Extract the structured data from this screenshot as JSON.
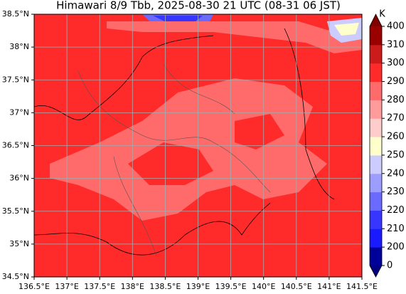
{
  "map": {
    "title": "Himawari 8/9 Tbb, 2025-08-30 21 UTC (08-31 06 JST)",
    "xlim": [
      136.5,
      141.5
    ],
    "ylim": [
      34.5,
      38.5
    ],
    "xticks": [
      {
        "value": 136.5,
        "label": "136.5°E"
      },
      {
        "value": 137,
        "label": "137°E"
      },
      {
        "value": 137.5,
        "label": "137.5°E"
      },
      {
        "value": 138,
        "label": "138°E"
      },
      {
        "value": 138.5,
        "label": "138.5°E"
      },
      {
        "value": 139,
        "label": "139°E"
      },
      {
        "value": 139.5,
        "label": "139.5°E"
      },
      {
        "value": 140,
        "label": "140°E"
      },
      {
        "value": 140.5,
        "label": "140.5°E"
      },
      {
        "value": 141,
        "label": "141°E"
      },
      {
        "value": 141.5,
        "label": "141.5°E"
      }
    ],
    "yticks": [
      {
        "value": 34.5,
        "label": "34.5°N"
      },
      {
        "value": 35,
        "label": "35°N"
      },
      {
        "value": 35.5,
        "label": "35.5°N"
      },
      {
        "value": 36,
        "label": "36°N"
      },
      {
        "value": 36.5,
        "label": "36.5°N"
      },
      {
        "value": 37,
        "label": "37°N"
      },
      {
        "value": 37.5,
        "label": "37.5°N"
      },
      {
        "value": 38,
        "label": "38°N"
      },
      {
        "value": 38.5,
        "label": "38.5°N"
      }
    ],
    "grid": true,
    "colorbar": {
      "unit": "K",
      "ticks": [
        0,
        200,
        210,
        220,
        230,
        240,
        250,
        260,
        270,
        280,
        290,
        300,
        310,
        400
      ],
      "colors": [
        "#00009a",
        "#1a1aff",
        "#3636ff",
        "#6a6aff",
        "#9d9dff",
        "#ccccff",
        "#ffffcc",
        "#ffcccc",
        "#ff9b9b",
        "#ff6a6a",
        "#ff2a2a",
        "#cc1b1b",
        "#9a0000"
      ],
      "under_color": "#000080",
      "over_color": "#800000"
    }
  }
}
